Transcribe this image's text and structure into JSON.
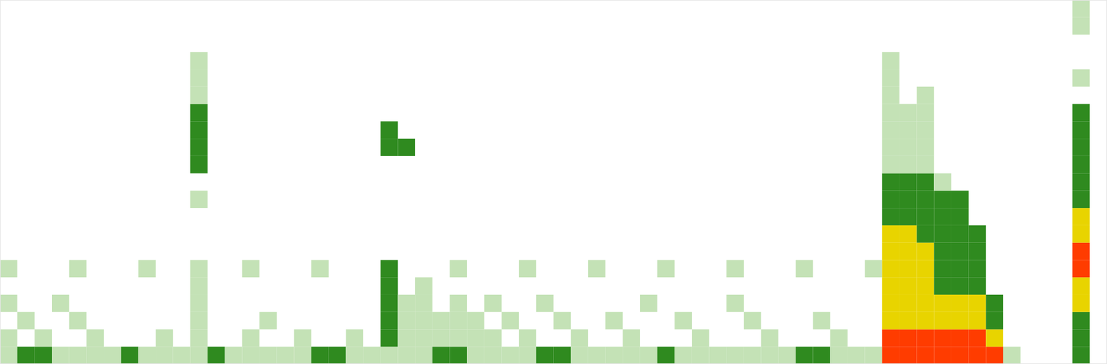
{
  "chart_data": {
    "type": "heatmap",
    "xlim": [
      0,
      64
    ],
    "ylim": [
      0,
      21
    ],
    "zlim": [
      0,
      4
    ],
    "tick_labels": false,
    "cells": [
      [
        0,
        0,
        1
      ],
      [
        1,
        0,
        2
      ],
      [
        2,
        0,
        2
      ],
      [
        3,
        0,
        1
      ],
      [
        4,
        0,
        1
      ],
      [
        5,
        0,
        1
      ],
      [
        6,
        0,
        1
      ],
      [
        7,
        0,
        2
      ],
      [
        8,
        0,
        1
      ],
      [
        9,
        0,
        1
      ],
      [
        10,
        0,
        1
      ],
      [
        11,
        0,
        1
      ],
      [
        12,
        0,
        2
      ],
      [
        13,
        0,
        1
      ],
      [
        14,
        0,
        1
      ],
      [
        15,
        0,
        1
      ],
      [
        16,
        0,
        1
      ],
      [
        17,
        0,
        1
      ],
      [
        18,
        0,
        2
      ],
      [
        19,
        0,
        2
      ],
      [
        20,
        0,
        1
      ],
      [
        21,
        0,
        1
      ],
      [
        22,
        0,
        1
      ],
      [
        23,
        0,
        1
      ],
      [
        24,
        0,
        1
      ],
      [
        25,
        0,
        2
      ],
      [
        26,
        0,
        2
      ],
      [
        27,
        0,
        1
      ],
      [
        28,
        0,
        1
      ],
      [
        29,
        0,
        1
      ],
      [
        30,
        0,
        1
      ],
      [
        31,
        0,
        2
      ],
      [
        32,
        0,
        2
      ],
      [
        33,
        0,
        1
      ],
      [
        34,
        0,
        1
      ],
      [
        35,
        0,
        1
      ],
      [
        36,
        0,
        1
      ],
      [
        37,
        0,
        1
      ],
      [
        38,
        0,
        2
      ],
      [
        39,
        0,
        1
      ],
      [
        40,
        0,
        1
      ],
      [
        41,
        0,
        1
      ],
      [
        42,
        0,
        1
      ],
      [
        43,
        0,
        1
      ],
      [
        44,
        0,
        1
      ],
      [
        45,
        0,
        1
      ],
      [
        46,
        0,
        2
      ],
      [
        47,
        0,
        2
      ],
      [
        48,
        0,
        1
      ],
      [
        49,
        0,
        1
      ],
      [
        50,
        0,
        1
      ],
      [
        51,
        0,
        4
      ],
      [
        52,
        0,
        4
      ],
      [
        53,
        0,
        4
      ],
      [
        54,
        0,
        4
      ],
      [
        55,
        0,
        4
      ],
      [
        56,
        0,
        4
      ],
      [
        57,
        0,
        4
      ],
      [
        58,
        0,
        1
      ],
      [
        62,
        0,
        2
      ],
      [
        0,
        1,
        1
      ],
      [
        2,
        1,
        1
      ],
      [
        5,
        1,
        1
      ],
      [
        9,
        1,
        1
      ],
      [
        11,
        1,
        1
      ],
      [
        14,
        1,
        1
      ],
      [
        17,
        1,
        1
      ],
      [
        20,
        1,
        1
      ],
      [
        22,
        1,
        2
      ],
      [
        23,
        1,
        1
      ],
      [
        24,
        1,
        1
      ],
      [
        25,
        1,
        1
      ],
      [
        26,
        1,
        1
      ],
      [
        27,
        1,
        1
      ],
      [
        28,
        1,
        1
      ],
      [
        30,
        1,
        1
      ],
      [
        33,
        1,
        1
      ],
      [
        36,
        1,
        1
      ],
      [
        40,
        1,
        1
      ],
      [
        44,
        1,
        1
      ],
      [
        48,
        1,
        1
      ],
      [
        51,
        1,
        4
      ],
      [
        52,
        1,
        4
      ],
      [
        53,
        1,
        4
      ],
      [
        54,
        1,
        4
      ],
      [
        55,
        1,
        4
      ],
      [
        56,
        1,
        4
      ],
      [
        57,
        1,
        3
      ],
      [
        62,
        1,
        2
      ],
      [
        1,
        2,
        1
      ],
      [
        4,
        2,
        1
      ],
      [
        11,
        2,
        1
      ],
      [
        15,
        2,
        1
      ],
      [
        22,
        2,
        2
      ],
      [
        23,
        2,
        1
      ],
      [
        24,
        2,
        1
      ],
      [
        25,
        2,
        1
      ],
      [
        26,
        2,
        1
      ],
      [
        27,
        2,
        1
      ],
      [
        29,
        2,
        1
      ],
      [
        32,
        2,
        1
      ],
      [
        35,
        2,
        1
      ],
      [
        39,
        2,
        1
      ],
      [
        43,
        2,
        1
      ],
      [
        47,
        2,
        1
      ],
      [
        51,
        2,
        3
      ],
      [
        52,
        2,
        3
      ],
      [
        53,
        2,
        3
      ],
      [
        54,
        2,
        3
      ],
      [
        55,
        2,
        3
      ],
      [
        56,
        2,
        3
      ],
      [
        57,
        2,
        2
      ],
      [
        62,
        2,
        2
      ],
      [
        0,
        3,
        1
      ],
      [
        3,
        3,
        1
      ],
      [
        11,
        3,
        1
      ],
      [
        22,
        3,
        2
      ],
      [
        23,
        3,
        1
      ],
      [
        24,
        3,
        1
      ],
      [
        26,
        3,
        1
      ],
      [
        28,
        3,
        1
      ],
      [
        31,
        3,
        1
      ],
      [
        37,
        3,
        1
      ],
      [
        42,
        3,
        1
      ],
      [
        51,
        3,
        3
      ],
      [
        52,
        3,
        3
      ],
      [
        53,
        3,
        3
      ],
      [
        54,
        3,
        3
      ],
      [
        55,
        3,
        3
      ],
      [
        56,
        3,
        3
      ],
      [
        57,
        3,
        2
      ],
      [
        62,
        3,
        3
      ],
      [
        11,
        4,
        1
      ],
      [
        22,
        4,
        2
      ],
      [
        24,
        4,
        1
      ],
      [
        51,
        4,
        3
      ],
      [
        52,
        4,
        3
      ],
      [
        53,
        4,
        3
      ],
      [
        54,
        4,
        2
      ],
      [
        55,
        4,
        2
      ],
      [
        56,
        4,
        2
      ],
      [
        62,
        4,
        3
      ],
      [
        0,
        5,
        1
      ],
      [
        4,
        5,
        1
      ],
      [
        8,
        5,
        1
      ],
      [
        11,
        5,
        1
      ],
      [
        14,
        5,
        1
      ],
      [
        18,
        5,
        1
      ],
      [
        22,
        5,
        2
      ],
      [
        26,
        5,
        1
      ],
      [
        30,
        5,
        1
      ],
      [
        34,
        5,
        1
      ],
      [
        38,
        5,
        1
      ],
      [
        42,
        5,
        1
      ],
      [
        46,
        5,
        1
      ],
      [
        50,
        5,
        1
      ],
      [
        51,
        5,
        3
      ],
      [
        52,
        5,
        3
      ],
      [
        53,
        5,
        3
      ],
      [
        54,
        5,
        2
      ],
      [
        55,
        5,
        2
      ],
      [
        56,
        5,
        2
      ],
      [
        62,
        5,
        4
      ],
      [
        51,
        6,
        3
      ],
      [
        52,
        6,
        3
      ],
      [
        53,
        6,
        3
      ],
      [
        54,
        6,
        2
      ],
      [
        55,
        6,
        2
      ],
      [
        56,
        6,
        2
      ],
      [
        62,
        6,
        4
      ],
      [
        51,
        7,
        3
      ],
      [
        52,
        7,
        3
      ],
      [
        53,
        7,
        2
      ],
      [
        54,
        7,
        2
      ],
      [
        55,
        7,
        2
      ],
      [
        56,
        7,
        2
      ],
      [
        62,
        7,
        3
      ],
      [
        51,
        8,
        2
      ],
      [
        52,
        8,
        2
      ],
      [
        53,
        8,
        2
      ],
      [
        54,
        8,
        2
      ],
      [
        55,
        8,
        2
      ],
      [
        62,
        8,
        3
      ],
      [
        11,
        9,
        1
      ],
      [
        51,
        9,
        2
      ],
      [
        52,
        9,
        2
      ],
      [
        53,
        9,
        2
      ],
      [
        54,
        9,
        2
      ],
      [
        55,
        9,
        2
      ],
      [
        62,
        9,
        2
      ],
      [
        51,
        10,
        2
      ],
      [
        52,
        10,
        2
      ],
      [
        53,
        10,
        2
      ],
      [
        54,
        10,
        1
      ],
      [
        62,
        10,
        2
      ],
      [
        11,
        11,
        2
      ],
      [
        51,
        11,
        1
      ],
      [
        52,
        11,
        1
      ],
      [
        53,
        11,
        1
      ],
      [
        62,
        11,
        2
      ],
      [
        11,
        12,
        2
      ],
      [
        22,
        12,
        2
      ],
      [
        23,
        12,
        2
      ],
      [
        51,
        12,
        1
      ],
      [
        52,
        12,
        1
      ],
      [
        53,
        12,
        1
      ],
      [
        62,
        12,
        2
      ],
      [
        11,
        13,
        2
      ],
      [
        22,
        13,
        2
      ],
      [
        51,
        13,
        1
      ],
      [
        52,
        13,
        1
      ],
      [
        53,
        13,
        1
      ],
      [
        62,
        13,
        2
      ],
      [
        11,
        14,
        2
      ],
      [
        51,
        14,
        1
      ],
      [
        52,
        14,
        1
      ],
      [
        53,
        14,
        1
      ],
      [
        62,
        14,
        2
      ],
      [
        11,
        15,
        1
      ],
      [
        51,
        15,
        1
      ],
      [
        53,
        15,
        1
      ],
      [
        11,
        16,
        1
      ],
      [
        51,
        16,
        1
      ],
      [
        62,
        16,
        1
      ],
      [
        11,
        17,
        1
      ],
      [
        51,
        17,
        1
      ],
      [
        62,
        19,
        1
      ],
      [
        62,
        20,
        1
      ]
    ]
  }
}
